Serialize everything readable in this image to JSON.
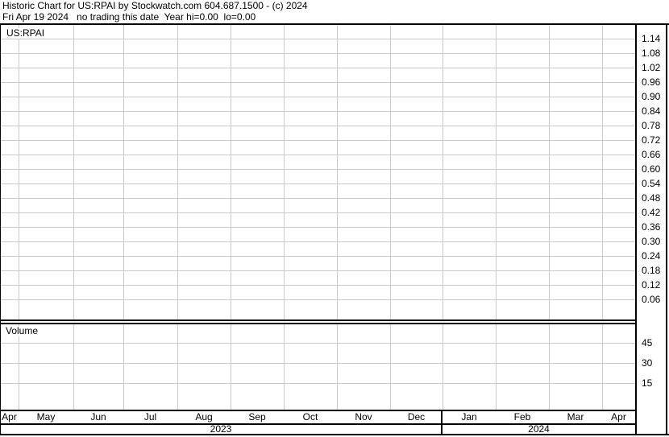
{
  "header": {
    "line1": "Historic Chart for US:RPAI by Stockwatch.com 604.687.1500 - (c) 2024",
    "line2": "Fri Apr 19 2024   no trading this date  Year hi=0.00  lo=0.00"
  },
  "price_pane": {
    "symbol_label": "US:RPAI"
  },
  "volume_pane": {
    "label": "Volume"
  },
  "chart_data": {
    "type": "line",
    "title": "Historic Chart for US:RPAI",
    "status": "no trading this date",
    "date_shown": "Fri Apr 19 2024",
    "year_hi": "0.00",
    "year_lo": "0.00",
    "grid": true,
    "legend": "none",
    "series": [
      {
        "name": "US:RPAI price",
        "x": [],
        "values": []
      },
      {
        "name": "Volume",
        "x": [],
        "values": []
      }
    ],
    "price_axis": {
      "side": "right",
      "tick_step": 0.06,
      "ticks": [
        "1.14",
        "1.08",
        "1.02",
        "0.96",
        "0.90",
        "0.84",
        "0.78",
        "0.72",
        "0.66",
        "0.60",
        "0.54",
        "0.48",
        "0.42",
        "0.36",
        "0.30",
        "0.24",
        "0.18",
        "0.12",
        "0.06"
      ]
    },
    "volume_axis": {
      "side": "right",
      "ticks": [
        "45",
        "30",
        "15"
      ]
    },
    "x_axis": {
      "months": [
        "Apr",
        "May",
        "Jun",
        "Jul",
        "Aug",
        "Sep",
        "Oct",
        "Nov",
        "Dec",
        "Jan",
        "Feb",
        "Mar",
        "Apr"
      ],
      "years": [
        "2023",
        "2024"
      ]
    }
  },
  "colors": {
    "background": "#ffffff",
    "border": "#000000",
    "grid": "#c9c9c9",
    "text": "#000000"
  }
}
